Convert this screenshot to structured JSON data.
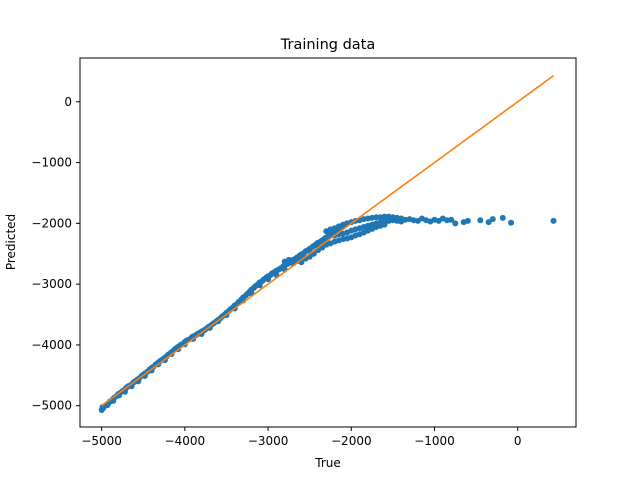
{
  "chart_data": {
    "type": "scatter",
    "title": "Training data",
    "xlabel": "True",
    "ylabel": "Predicted",
    "xlim": [
      -5260,
      700
    ],
    "ylim": [
      -5350,
      720
    ],
    "x_ticks": [
      -5000,
      -4000,
      -3000,
      -2000,
      -1000,
      0
    ],
    "y_ticks": [
      -5000,
      -4000,
      -3000,
      -2000,
      -1000,
      0
    ],
    "x_tick_labels": [
      "−5000",
      "−4000",
      "−3000",
      "−2000",
      "−1000",
      "0"
    ],
    "y_tick_labels": [
      "−5000",
      "−4000",
      "−3000",
      "−2000",
      "−1000",
      "0"
    ],
    "grid": false,
    "colors": {
      "points": "#1f77b4",
      "line": "#ff7f0e"
    },
    "series": [
      {
        "type": "scatter",
        "points": [
          [
            -5000,
            -5070
          ],
          [
            -4980,
            -5040
          ],
          [
            -4950,
            -4990
          ],
          [
            -4920,
            -4960
          ],
          [
            -4900,
            -4930
          ],
          [
            -4870,
            -4900
          ],
          [
            -4850,
            -4870
          ],
          [
            -4820,
            -4840
          ],
          [
            -4800,
            -4810
          ],
          [
            -4780,
            -4790
          ],
          [
            -4750,
            -4760
          ],
          [
            -4720,
            -4730
          ],
          [
            -4700,
            -4700
          ],
          [
            -4680,
            -4680
          ],
          [
            -4650,
            -4660
          ],
          [
            -4620,
            -4620
          ],
          [
            -4600,
            -4600
          ],
          [
            -4570,
            -4570
          ],
          [
            -4550,
            -4550
          ],
          [
            -4520,
            -4510
          ],
          [
            -4500,
            -4490
          ],
          [
            -4480,
            -4470
          ],
          [
            -4450,
            -4440
          ],
          [
            -4420,
            -4400
          ],
          [
            -4400,
            -4380
          ],
          [
            -4380,
            -4360
          ],
          [
            -4350,
            -4320
          ],
          [
            -4320,
            -4290
          ],
          [
            -4300,
            -4270
          ],
          [
            -4280,
            -4250
          ],
          [
            -4250,
            -4220
          ],
          [
            -4220,
            -4190
          ],
          [
            -4200,
            -4160
          ],
          [
            -4170,
            -4130
          ],
          [
            -4150,
            -4110
          ],
          [
            -4120,
            -4070
          ],
          [
            -4100,
            -4050
          ],
          [
            -4080,
            -4030
          ],
          [
            -4050,
            -4000
          ],
          [
            -4020,
            -3980
          ],
          [
            -4000,
            -3950
          ],
          [
            -3980,
            -3930
          ],
          [
            -3950,
            -3910
          ],
          [
            -3920,
            -3880
          ],
          [
            -3900,
            -3860
          ],
          [
            -3870,
            -3840
          ],
          [
            -3850,
            -3820
          ],
          [
            -3820,
            -3800
          ],
          [
            -3800,
            -3780
          ],
          [
            -3770,
            -3760
          ],
          [
            -3750,
            -3740
          ],
          [
            -3720,
            -3710
          ],
          [
            -3700,
            -3690
          ],
          [
            -3670,
            -3660
          ],
          [
            -3650,
            -3640
          ],
          [
            -3620,
            -3610
          ],
          [
            -3600,
            -3590
          ],
          [
            -3570,
            -3560
          ],
          [
            -3550,
            -3530
          ],
          [
            -3520,
            -3500
          ],
          [
            -3500,
            -3470
          ],
          [
            -3470,
            -3440
          ],
          [
            -3450,
            -3410
          ],
          [
            -3420,
            -3380
          ],
          [
            -3400,
            -3350
          ],
          [
            -3370,
            -3320
          ],
          [
            -3350,
            -3290
          ],
          [
            -3320,
            -3250
          ],
          [
            -3300,
            -3220
          ],
          [
            -3270,
            -3190
          ],
          [
            -3250,
            -3160
          ],
          [
            -3220,
            -3120
          ],
          [
            -3200,
            -3090
          ],
          [
            -3170,
            -3060
          ],
          [
            -3150,
            -3030
          ],
          [
            -3120,
            -3000
          ],
          [
            -3100,
            -2970
          ],
          [
            -3070,
            -2950
          ],
          [
            -3050,
            -2920
          ],
          [
            -3020,
            -2890
          ],
          [
            -3000,
            -2870
          ],
          [
            -2970,
            -2850
          ],
          [
            -2950,
            -2820
          ],
          [
            -2920,
            -2800
          ],
          [
            -2900,
            -2780
          ],
          [
            -2870,
            -2760
          ],
          [
            -2850,
            -2740
          ],
          [
            -2820,
            -2710
          ],
          [
            -2800,
            -2690
          ],
          [
            -2770,
            -2670
          ],
          [
            -2750,
            -2650
          ],
          [
            -2720,
            -2620
          ],
          [
            -2700,
            -2600
          ],
          [
            -2670,
            -2580
          ],
          [
            -2650,
            -2560
          ],
          [
            -2620,
            -2530
          ],
          [
            -2600,
            -2510
          ],
          [
            -2570,
            -2490
          ],
          [
            -2550,
            -2460
          ],
          [
            -2520,
            -2440
          ],
          [
            -2500,
            -2420
          ],
          [
            -2470,
            -2390
          ],
          [
            -2450,
            -2370
          ],
          [
            -2420,
            -2340
          ],
          [
            -2400,
            -2320
          ],
          [
            -2370,
            -2300
          ],
          [
            -2350,
            -2280
          ],
          [
            -2320,
            -2250
          ],
          [
            -2300,
            -2230
          ],
          [
            -2270,
            -2200
          ],
          [
            -2250,
            -2180
          ],
          [
            -2220,
            -2160
          ],
          [
            -2200,
            -2140
          ],
          [
            -2170,
            -2110
          ],
          [
            -2150,
            -2090
          ],
          [
            -2120,
            -2070
          ],
          [
            -2100,
            -2040
          ],
          [
            -2070,
            -2020
          ],
          [
            -2050,
            -2000
          ],
          [
            -4990,
            -5020
          ],
          [
            -4930,
            -4990
          ],
          [
            -4860,
            -4920
          ],
          [
            -4790,
            -4830
          ],
          [
            -4720,
            -4770
          ],
          [
            -4640,
            -4680
          ],
          [
            -4560,
            -4600
          ],
          [
            -4480,
            -4510
          ],
          [
            -4400,
            -4420
          ],
          [
            -4320,
            -4320
          ],
          [
            -4240,
            -4250
          ],
          [
            -4160,
            -4150
          ],
          [
            -4080,
            -4070
          ],
          [
            -4000,
            -3990
          ],
          [
            -3900,
            -3900
          ],
          [
            -3800,
            -3820
          ],
          [
            -3700,
            -3720
          ],
          [
            -3600,
            -3610
          ],
          [
            -3500,
            -3510
          ],
          [
            -3400,
            -3400
          ],
          [
            -3300,
            -3270
          ],
          [
            -3200,
            -3150
          ],
          [
            -3100,
            -3020
          ],
          [
            -3000,
            -2920
          ],
          [
            -2900,
            -2850
          ],
          [
            -2800,
            -2760
          ],
          [
            -2700,
            -2660
          ],
          [
            -2600,
            -2560
          ],
          [
            -2500,
            -2460
          ],
          [
            -2400,
            -2370
          ],
          [
            -2300,
            -2280
          ],
          [
            -2800,
            -2630
          ],
          [
            -2750,
            -2600
          ],
          [
            -2700,
            -2640
          ],
          [
            -2650,
            -2620
          ],
          [
            -2600,
            -2640
          ],
          [
            -2550,
            -2580
          ],
          [
            -2500,
            -2550
          ],
          [
            -2450,
            -2500
          ],
          [
            -2400,
            -2440
          ],
          [
            -2350,
            -2400
          ],
          [
            -2300,
            -2350
          ],
          [
            -2250,
            -2330
          ],
          [
            -2200,
            -2300
          ],
          [
            -2150,
            -2280
          ],
          [
            -2100,
            -2260
          ],
          [
            -2050,
            -2250
          ],
          [
            -2000,
            -2230
          ],
          [
            -1950,
            -2200
          ],
          [
            -1900,
            -2180
          ],
          [
            -1850,
            -2150
          ],
          [
            -1800,
            -2120
          ],
          [
            -1750,
            -2090
          ],
          [
            -1700,
            -2060
          ],
          [
            -1650,
            -2040
          ],
          [
            -1600,
            -2020
          ],
          [
            -2300,
            -2130
          ],
          [
            -2250,
            -2100
          ],
          [
            -2200,
            -2080
          ],
          [
            -2150,
            -2050
          ],
          [
            -2100,
            -2020
          ],
          [
            -2050,
            -2000
          ],
          [
            -2000,
            -1980
          ],
          [
            -1950,
            -1960
          ],
          [
            -1900,
            -1950
          ],
          [
            -1850,
            -1930
          ],
          [
            -1800,
            -1920
          ],
          [
            -1750,
            -1910
          ],
          [
            -1700,
            -1900
          ],
          [
            -1650,
            -1900
          ],
          [
            -1600,
            -1890
          ],
          [
            -1550,
            -1890
          ],
          [
            -1500,
            -1900
          ],
          [
            -1450,
            -1910
          ],
          [
            -1400,
            -1920
          ],
          [
            -2200,
            -2200
          ],
          [
            -2150,
            -2180
          ],
          [
            -2100,
            -2170
          ],
          [
            -2050,
            -2150
          ],
          [
            -2000,
            -2120
          ],
          [
            -1950,
            -2100
          ],
          [
            -1900,
            -2080
          ],
          [
            -1850,
            -2060
          ],
          [
            -1800,
            -2040
          ],
          [
            -1750,
            -2020
          ],
          [
            -1700,
            -2000
          ],
          [
            -1650,
            -1980
          ],
          [
            -1600,
            -1970
          ],
          [
            -1550,
            -1960
          ],
          [
            -1500,
            -1950
          ],
          [
            -1450,
            -1960
          ],
          [
            -1400,
            -1970
          ],
          [
            -1350,
            -1940
          ],
          [
            -1300,
            -1930
          ],
          [
            -1250,
            -1950
          ],
          [
            -1200,
            -1960
          ],
          [
            -1150,
            -1920
          ],
          [
            -1100,
            -1950
          ],
          [
            -1050,
            -1970
          ],
          [
            -1000,
            -1940
          ],
          [
            -950,
            -1960
          ],
          [
            -900,
            -1920
          ],
          [
            -850,
            -1950
          ],
          [
            -800,
            -1940
          ],
          [
            -750,
            -2000
          ],
          [
            -650,
            -1980
          ],
          [
            -600,
            -1960
          ],
          [
            -450,
            -1950
          ],
          [
            -350,
            -1980
          ],
          [
            -300,
            -1930
          ],
          [
            -180,
            -1910
          ],
          [
            -80,
            -1990
          ],
          [
            430,
            -1960
          ]
        ]
      },
      {
        "type": "line",
        "points": [
          [
            -5000,
            -5000
          ],
          [
            430,
            430
          ]
        ]
      }
    ]
  }
}
